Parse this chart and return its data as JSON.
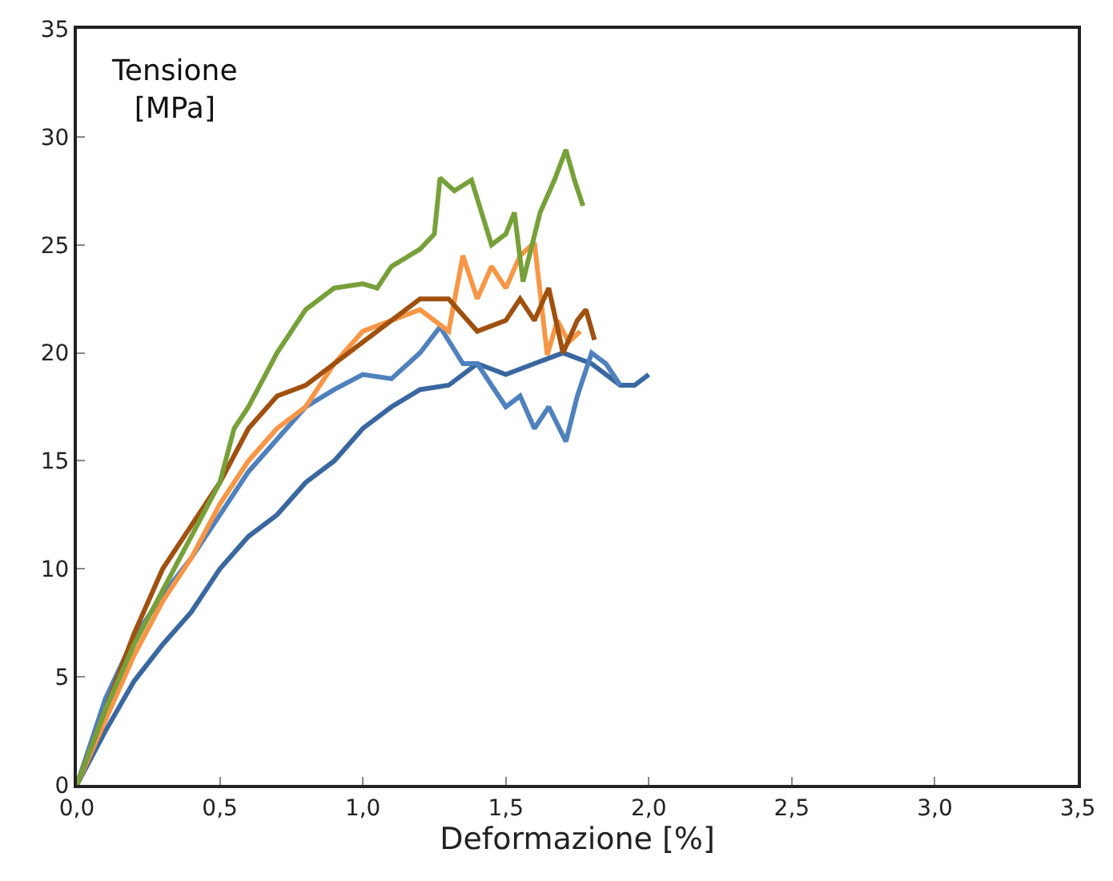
{
  "chart_data": {
    "type": "line",
    "xlabel": "Deformazione [%]",
    "ylabel": "Tensione\n[MPa]",
    "xlim": [
      0,
      3.5
    ],
    "ylim": [
      0,
      35
    ],
    "xticks": [
      {
        "value": 0,
        "label": "0,0"
      },
      {
        "value": 0.5,
        "label": "0,5"
      },
      {
        "value": 1,
        "label": "1,0"
      },
      {
        "value": 1.5,
        "label": "1,5"
      },
      {
        "value": 2,
        "label": "2,0"
      },
      {
        "value": 2.5,
        "label": "2,5"
      },
      {
        "value": 3,
        "label": "3,0"
      },
      {
        "value": 3.5,
        "label": "3,5"
      }
    ],
    "yticks": [
      0,
      5,
      10,
      15,
      20,
      25,
      30,
      35
    ],
    "legend": false,
    "marker": "none",
    "line_style": "solid",
    "series": [
      {
        "color": "#3a67a0",
        "x": [
          0,
          0.1,
          0.2,
          0.3,
          0.4,
          0.5,
          0.6,
          0.7,
          0.8,
          0.9,
          1.0,
          1.1,
          1.2,
          1.3,
          1.4,
          1.5,
          1.6,
          1.7,
          1.8,
          1.85,
          1.9,
          1.95,
          2.0
        ],
        "values": [
          0,
          2.5,
          4.8,
          6.5,
          8,
          10,
          11.5,
          12.5,
          14,
          15,
          16.5,
          17.5,
          18.3,
          18.5,
          19.5,
          19,
          19.5,
          20,
          19.5,
          19,
          18.5,
          18.5,
          19
        ]
      },
      {
        "color": "#4f81bd",
        "x": [
          0,
          0.1,
          0.2,
          0.3,
          0.4,
          0.5,
          0.6,
          0.7,
          0.8,
          0.9,
          1.0,
          1.1,
          1.2,
          1.27,
          1.35,
          1.4,
          1.45,
          1.5,
          1.55,
          1.6,
          1.65,
          1.71,
          1.75,
          1.8,
          1.85,
          1.9
        ],
        "values": [
          0,
          4,
          6.8,
          8.8,
          10.5,
          12.5,
          14.5,
          16,
          17.5,
          18.3,
          19,
          18.8,
          20,
          21.2,
          19.5,
          19.5,
          18.5,
          17.5,
          18,
          16.5,
          17.5,
          15.9,
          18,
          20,
          19.5,
          18.5
        ]
      },
      {
        "color": "#f79646",
        "x": [
          0,
          0.1,
          0.2,
          0.3,
          0.4,
          0.5,
          0.6,
          0.7,
          0.8,
          0.9,
          1.0,
          1.1,
          1.2,
          1.3,
          1.35,
          1.4,
          1.45,
          1.5,
          1.55,
          1.6,
          1.645,
          1.68,
          1.72,
          1.76
        ],
        "values": [
          0,
          3,
          6,
          8.5,
          10.5,
          13,
          15,
          16.5,
          17.5,
          19.5,
          21,
          21.5,
          22,
          21,
          24.5,
          22.5,
          24,
          23,
          24.5,
          25.1,
          19.9,
          21.5,
          20.5,
          21
        ]
      },
      {
        "color": "#a0500f",
        "x": [
          0,
          0.1,
          0.2,
          0.3,
          0.4,
          0.5,
          0.6,
          0.7,
          0.8,
          0.9,
          1.0,
          1.1,
          1.2,
          1.3,
          1.4,
          1.5,
          1.55,
          1.6,
          1.65,
          1.7,
          1.75,
          1.78,
          1.81
        ],
        "values": [
          0,
          3.5,
          7,
          10,
          12,
          14,
          16.5,
          18,
          18.5,
          19.5,
          20.5,
          21.5,
          22.5,
          22.5,
          21,
          21.5,
          22.5,
          21.5,
          23,
          20,
          21.5,
          22,
          20.6
        ]
      },
      {
        "color": "#77a03a",
        "x": [
          0,
          0.1,
          0.2,
          0.3,
          0.4,
          0.5,
          0.55,
          0.6,
          0.7,
          0.8,
          0.9,
          1.0,
          1.05,
          1.1,
          1.2,
          1.25,
          1.27,
          1.32,
          1.38,
          1.45,
          1.5,
          1.53,
          1.56,
          1.62,
          1.67,
          1.71,
          1.74,
          1.77
        ],
        "values": [
          0,
          3.5,
          6.5,
          9,
          11.5,
          14,
          16.5,
          17.5,
          20,
          22,
          23,
          23.2,
          23,
          24,
          24.8,
          25.5,
          28.1,
          27.5,
          28,
          25,
          25.5,
          26.5,
          23.3,
          26.5,
          28,
          29.4,
          28,
          26.8
        ]
      }
    ]
  }
}
